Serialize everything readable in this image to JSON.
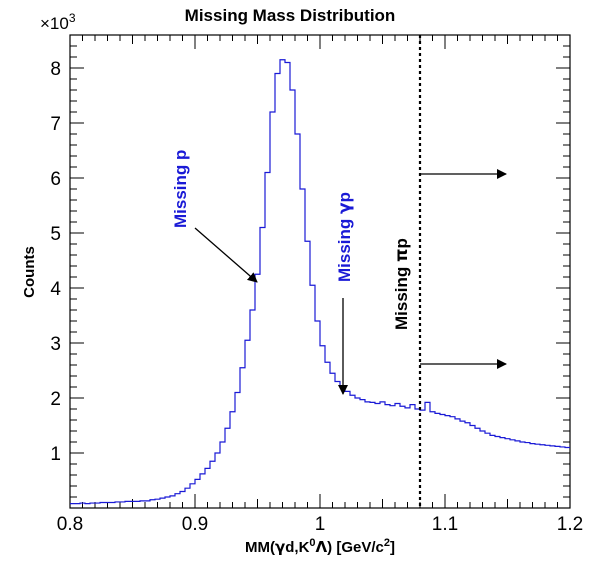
{
  "chart_data": {
    "type": "histogram",
    "title": "Missing Mass Distribution",
    "xlabel": {
      "main": "MM(",
      "gamma": "γ",
      "d": "d,K",
      "zero": "0",
      "lam": "Λ",
      "unit_open": ") [GeV/c",
      "two": "2",
      "unit_close": "]"
    },
    "ylabel": "Counts",
    "y_multiplier": {
      "base": "×10",
      "exp": "3"
    },
    "xlim": [
      0.8,
      1.2
    ],
    "ylim": [
      0,
      8.6
    ],
    "x_ticks": [
      "0.8",
      "0.9",
      "1",
      "1.1",
      "1.2"
    ],
    "y_ticks": [
      "1",
      "2",
      "3",
      "4",
      "5",
      "6",
      "7",
      "8"
    ],
    "bin_width": 0.004,
    "bin_start": 0.8,
    "values": [
      0.08,
      0.08,
      0.09,
      0.08,
      0.09,
      0.09,
      0.1,
      0.1,
      0.1,
      0.11,
      0.11,
      0.12,
      0.12,
      0.12,
      0.13,
      0.13,
      0.15,
      0.16,
      0.18,
      0.2,
      0.22,
      0.26,
      0.3,
      0.36,
      0.44,
      0.52,
      0.62,
      0.72,
      0.85,
      1.0,
      1.2,
      1.45,
      1.75,
      2.1,
      2.55,
      3.05,
      3.6,
      4.25,
      5.1,
      6.1,
      7.2,
      7.9,
      8.15,
      8.1,
      7.6,
      6.8,
      5.8,
      4.85,
      4.05,
      3.4,
      2.95,
      2.65,
      2.45,
      2.3,
      2.2,
      2.12,
      2.05,
      2.0,
      1.97,
      1.93,
      1.92,
      1.9,
      1.93,
      1.88,
      1.86,
      1.9,
      1.85,
      1.82,
      1.88,
      1.8,
      1.78,
      1.92,
      1.75,
      1.72,
      1.7,
      1.68,
      1.66,
      1.62,
      1.58,
      1.55,
      1.5,
      1.45,
      1.4,
      1.36,
      1.32,
      1.3,
      1.28,
      1.26,
      1.24,
      1.22,
      1.2,
      1.19,
      1.17,
      1.16,
      1.15,
      1.14,
      1.13,
      1.12,
      1.11,
      1.1,
      1.1
    ],
    "annotations": {
      "missing_p": "Missing p",
      "missing_gp": {
        "prefix": "Missing ",
        "gamma": "γ",
        "p": "p"
      },
      "missing_pip": {
        "prefix": "Missing ",
        "pi": "π",
        "p": "p"
      }
    },
    "cut_line_x": 1.08,
    "colors": {
      "histogram": "#1a1ad6",
      "annotation": "#1a1ad6",
      "axes": "#000000"
    }
  }
}
